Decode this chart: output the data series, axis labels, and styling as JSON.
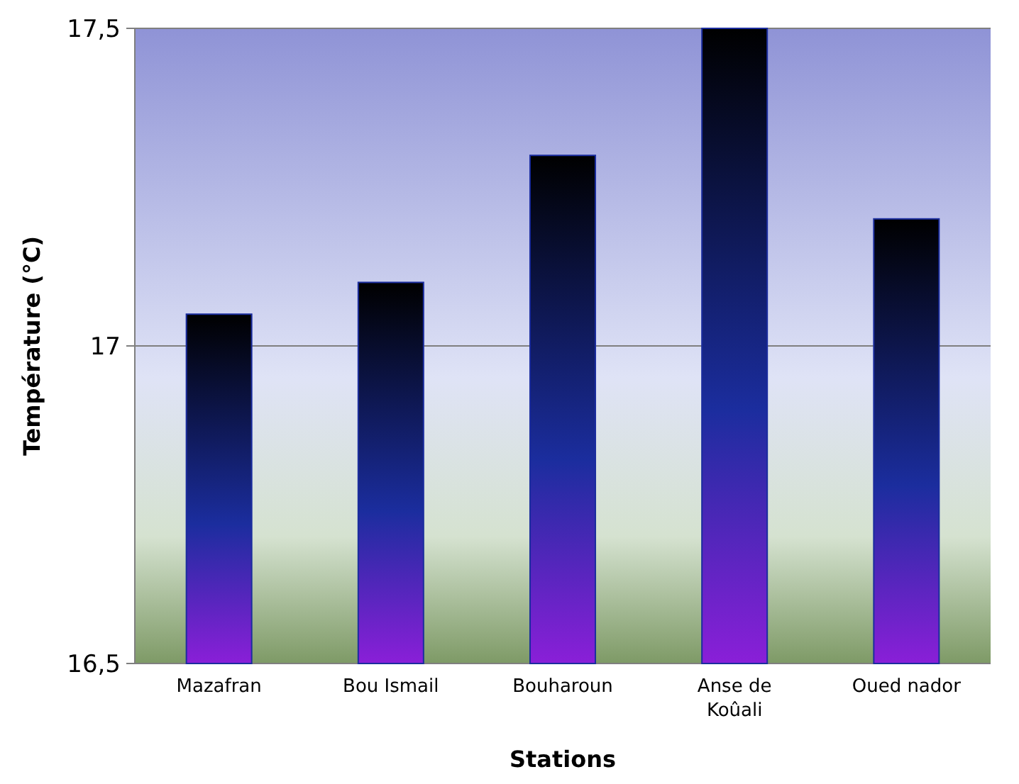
{
  "chart_data": {
    "type": "bar",
    "xlabel": "Stations",
    "ylabel": "Température (°C)",
    "categories": [
      "Mazafran",
      "Bou Ismail",
      "Bouharoun",
      "Anse de Koûali",
      "Oued nador"
    ],
    "values": [
      17.05,
      17.1,
      17.3,
      17.5,
      17.2
    ],
    "color": "#1b2d9e",
    "ylim": [
      16.5,
      17.5
    ],
    "yticks": [
      {
        "value": 16.5,
        "label": "16,5"
      },
      {
        "value": 17,
        "label": "17"
      },
      {
        "value": 17.5,
        "label": "17,5"
      }
    ],
    "grid": "y"
  }
}
